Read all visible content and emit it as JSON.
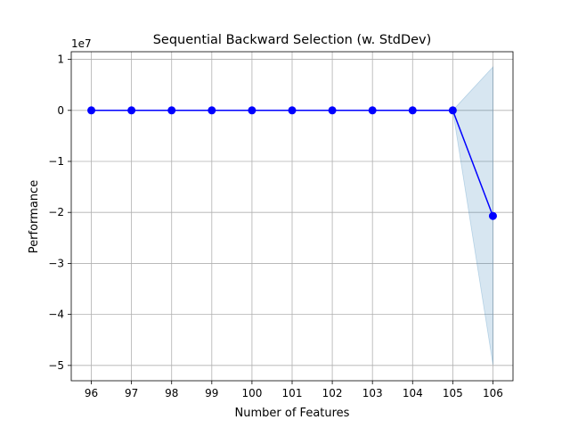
{
  "chart_data": {
    "type": "line",
    "title": "Sequential Backward Selection (w. StdDev)",
    "xlabel": "Number of Features",
    "ylabel": "Performance",
    "y_scale_label": "1e7",
    "x": [
      96,
      97,
      98,
      99,
      100,
      101,
      102,
      103,
      104,
      105,
      106
    ],
    "x_tick_labels": [
      "96",
      "97",
      "98",
      "99",
      "100",
      "101",
      "102",
      "103",
      "104",
      "105",
      "106"
    ],
    "y_tick_values": [
      1,
      0,
      -1,
      -2,
      -3,
      -4,
      -5
    ],
    "y_tick_labels": [
      "1",
      "0",
      "−1",
      "−2",
      "−3",
      "−4",
      "−5"
    ],
    "xlim": [
      95.5,
      106.5
    ],
    "ylim": [
      -5.3,
      1.15
    ],
    "y_multiplier": 10000000,
    "grid": true,
    "series": [
      {
        "values": [
          0,
          0,
          0,
          0,
          0,
          0,
          0,
          0,
          0,
          0,
          -2.07
        ],
        "std_upper": [
          0,
          0,
          0,
          0,
          0,
          0,
          0,
          0,
          0,
          0,
          0.85
        ],
        "std_lower": [
          0,
          0,
          0,
          0,
          0,
          0,
          0,
          0,
          0,
          0,
          -4.98
        ]
      }
    ],
    "colors": {
      "line": "#0000ff",
      "band": "#1f77b4",
      "grid": "#b0b0b0",
      "axes": "#000000"
    }
  }
}
